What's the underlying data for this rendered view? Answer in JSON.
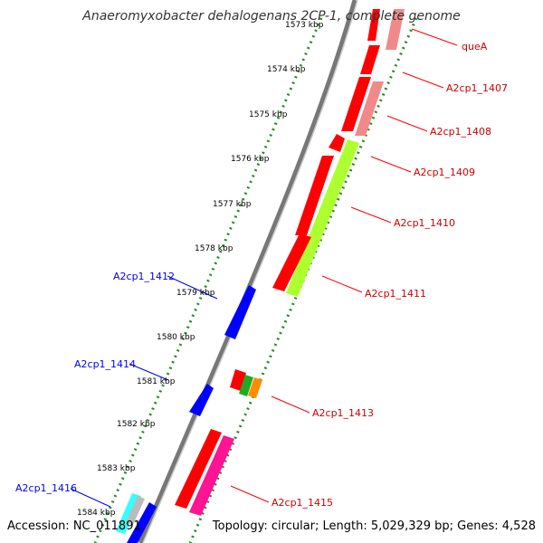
{
  "title": "Anaeromyxobacter dehalogenans 2CP-1, complete genome",
  "footer": {
    "accession": "Accession: NC_011891",
    "topology": "Topology: circular; Length: 5,029,329 bp; Genes: 4,528"
  },
  "ticks": [
    {
      "label": "1573 kbp"
    },
    {
      "label": "1574 kbp"
    },
    {
      "label": "1575 kbp"
    },
    {
      "label": "1576 kbp"
    },
    {
      "label": "1577 kbp"
    },
    {
      "label": "1578 kbp"
    },
    {
      "label": "1579 kbp"
    },
    {
      "label": "1580 kbp"
    },
    {
      "label": "1581 kbp"
    },
    {
      "label": "1582 kbp"
    },
    {
      "label": "1583 kbp"
    },
    {
      "label": "1584 kbp"
    }
  ],
  "genes_reverse": [
    {
      "name": "A2cp1_1412",
      "color": "#0000ee"
    },
    {
      "name": "A2cp1_1414",
      "color": "#0000ee"
    },
    {
      "name": "A2cp1_1416",
      "color": "#0000ee"
    }
  ],
  "genes_forward": [
    {
      "name": "queA",
      "color": "#cc0000"
    },
    {
      "name": "A2cp1_1407",
      "color": "#cc0000"
    },
    {
      "name": "A2cp1_1408",
      "color": "#cc0000"
    },
    {
      "name": "A2cp1_1409",
      "color": "#cc0000"
    },
    {
      "name": "A2cp1_1410",
      "color": "#cc0000"
    },
    {
      "name": "A2cp1_1411",
      "color": "#cc0000"
    },
    {
      "name": "A2cp1_1413",
      "color": "#cc0000"
    },
    {
      "name": "A2cp1_1415",
      "color": "#cc0000"
    }
  ],
  "colors": {
    "backbone": "#777777",
    "tick_dots": "#228b22",
    "red": "#ff0000",
    "salmon": "#f08a8a",
    "lime": "#adff2f",
    "blue": "#0000ff",
    "green": "#22aa22",
    "orange": "#ff8c00",
    "pink": "#ff1493",
    "cyan": "#33ffff",
    "grey": "#bbbbbb"
  }
}
